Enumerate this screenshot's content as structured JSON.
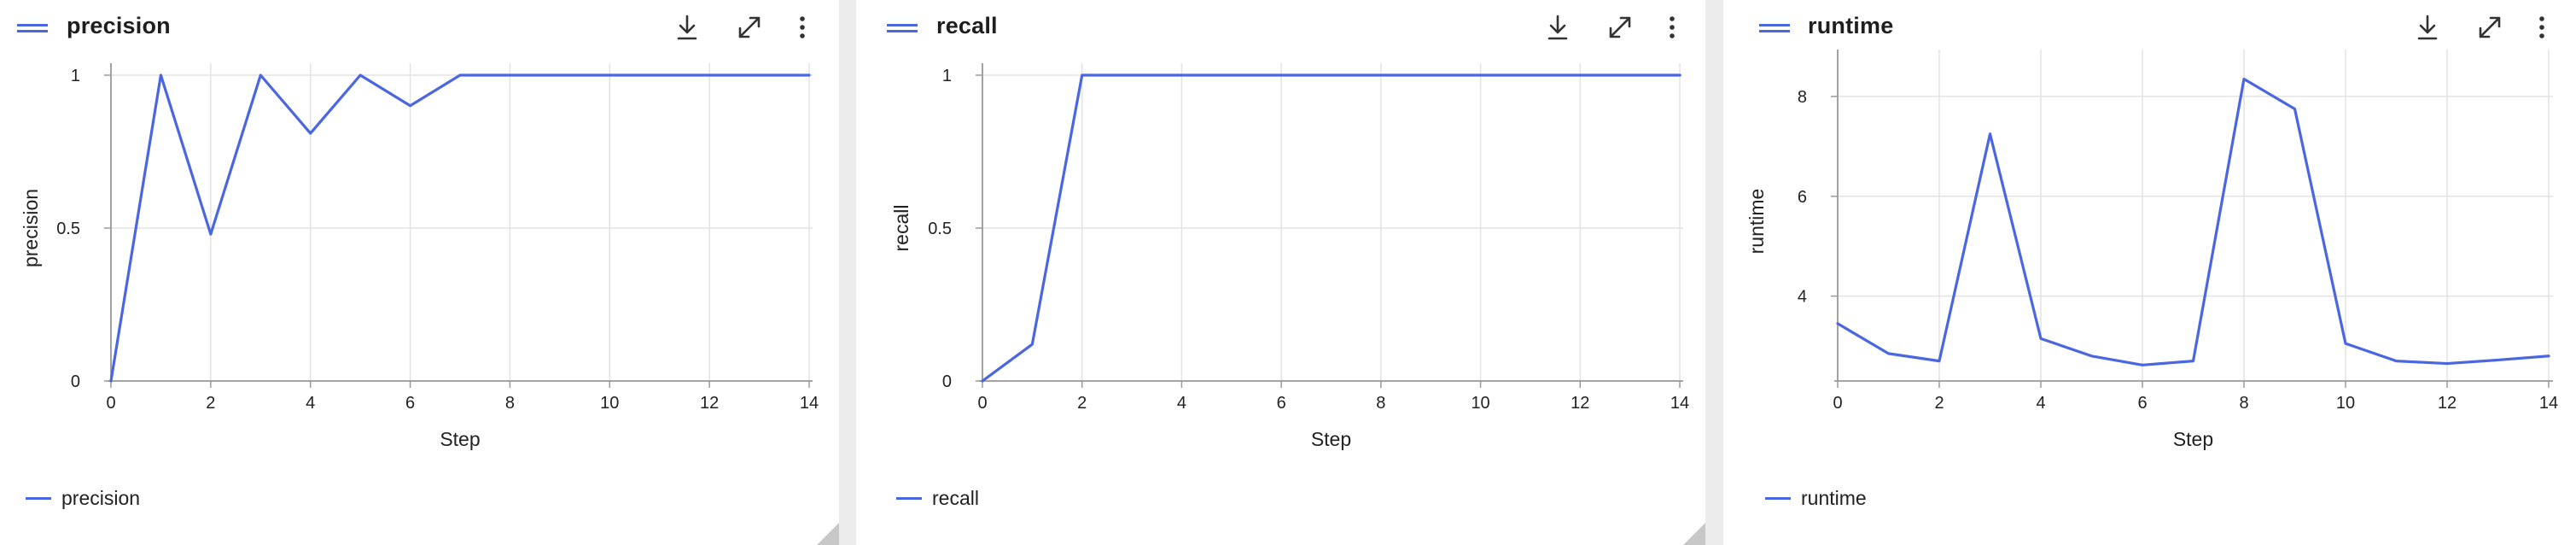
{
  "colors": {
    "series": "#4a66e0",
    "grid": "#e3e3e3",
    "axis": "#9a9a9a"
  },
  "header_icons": [
    "drag-handle-icon",
    "download-icon",
    "expand-icon",
    "more-vert-icon"
  ],
  "panels": [
    {
      "title": "precision",
      "legend_label": "precision",
      "chart_data": {
        "type": "line",
        "x": [
          0,
          1,
          2,
          3,
          4,
          5,
          6,
          7,
          8,
          9,
          10,
          11,
          12,
          13,
          14
        ],
        "series": [
          {
            "name": "precision",
            "values": [
              0,
              1,
              0.48,
              1,
              0.81,
              1,
              0.9,
              1,
              1,
              1,
              1,
              1,
              1,
              1,
              1
            ]
          }
        ],
        "xlabel": "Step",
        "ylabel": "precision",
        "xlim": [
          0,
          14
        ],
        "ylim": [
          0,
          1
        ],
        "xticks": [
          "0",
          "2",
          "4",
          "6",
          "8",
          "10",
          "12",
          "14"
        ],
        "yticks": [
          "0",
          "0.5",
          "1"
        ],
        "grid": true,
        "legend": "bottom-left"
      }
    },
    {
      "title": "recall",
      "legend_label": "recall",
      "chart_data": {
        "type": "line",
        "x": [
          0,
          1,
          2,
          3,
          4,
          5,
          6,
          7,
          8,
          9,
          10,
          11,
          12,
          13,
          14
        ],
        "series": [
          {
            "name": "recall",
            "values": [
              0,
              0.12,
              1,
              1,
              1,
              1,
              1,
              1,
              1,
              1,
              1,
              1,
              1,
              1,
              1
            ]
          }
        ],
        "xlabel": "Step",
        "ylabel": "recall",
        "xlim": [
          0,
          14
        ],
        "ylim": [
          0,
          1
        ],
        "xticks": [
          "0",
          "2",
          "4",
          "6",
          "8",
          "10",
          "12",
          "14"
        ],
        "yticks": [
          "0",
          "0.5",
          "1"
        ],
        "grid": true,
        "legend": "bottom-left"
      }
    },
    {
      "title": "runtime",
      "legend_label": "runtime",
      "chart_data": {
        "type": "line",
        "x": [
          0,
          1,
          2,
          3,
          4,
          5,
          6,
          7,
          8,
          9,
          10,
          11,
          12,
          13,
          14
        ],
        "series": [
          {
            "name": "runtime",
            "values": [
              3.45,
              2.85,
              2.7,
              7.25,
              3.15,
              2.8,
              2.62,
              2.7,
              8.35,
              7.75,
              3.05,
              2.7,
              2.65,
              2.72,
              2.8
            ]
          }
        ],
        "xlabel": "Step",
        "ylabel": "runtime",
        "xlim": [
          0,
          14
        ],
        "ylim": [
          2.3,
          8.7
        ],
        "xticks": [
          "0",
          "2",
          "4",
          "6",
          "8",
          "10",
          "12",
          "14"
        ],
        "yticks": [
          "4",
          "6",
          "8"
        ],
        "grid": true,
        "legend": "bottom-left"
      }
    }
  ]
}
